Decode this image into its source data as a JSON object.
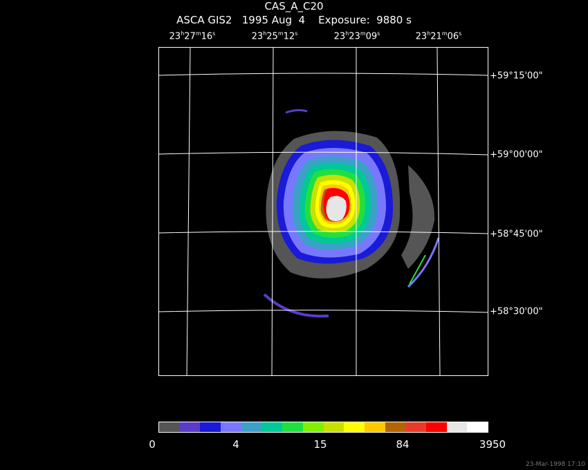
{
  "header": {
    "title": "CAS_A_C20",
    "subtitle": "ASCA GIS2   1995 Aug  4    Exposure:  9880 s"
  },
  "ra_labels": [
    {
      "h": "23",
      "m": "27",
      "s": "16"
    },
    {
      "h": "23",
      "m": "25",
      "s": "12"
    },
    {
      "h": "23",
      "m": "23",
      "s": "09"
    },
    {
      "h": "23",
      "m": "21",
      "s": "06"
    }
  ],
  "dec_labels": [
    "+59°15'00\"",
    "+59°00'00\"",
    "+58°45'00\"",
    "+58°30'00\""
  ],
  "colorbar": {
    "colors": [
      "#555555",
      "#5a3cc8",
      "#1a1ad8",
      "#7878ff",
      "#3ca0c8",
      "#00c896",
      "#20e040",
      "#80f000",
      "#c8e000",
      "#ffff00",
      "#ffc800",
      "#b46400",
      "#e83c28",
      "#ff0000",
      "#e6e6e6",
      "#ffffff"
    ],
    "labels": [
      "0",
      "4",
      "15",
      "84",
      "3950"
    ]
  },
  "footer": {
    "timestamp": "23-Mar-1998 17:10"
  }
}
